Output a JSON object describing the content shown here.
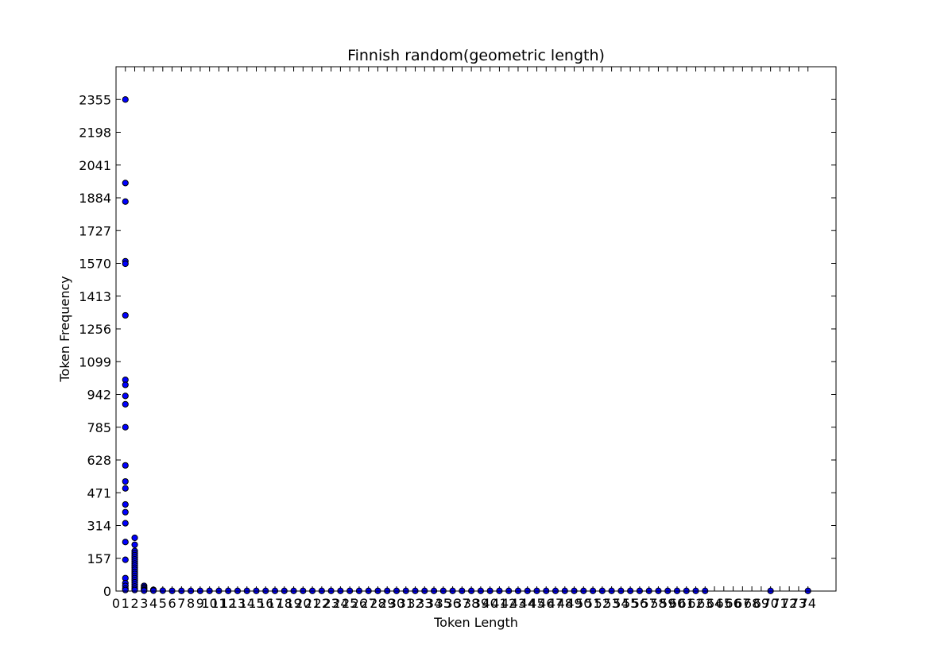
{
  "chart_data": {
    "type": "scatter",
    "title": "Finnish random(geometric length)",
    "xlabel": "Token Length",
    "ylabel": "Token Frequency",
    "xlim": [
      0,
      77
    ],
    "ylim": [
      0,
      2512
    ],
    "grid": false,
    "point_color": "#0000ff",
    "y_ticks": [
      0,
      157,
      314,
      471,
      628,
      785,
      942,
      1099,
      1256,
      1413,
      1570,
      1727,
      1884,
      2041,
      2198,
      2355
    ],
    "x_ticks": [
      0,
      1,
      2,
      3,
      4,
      5,
      6,
      7,
      8,
      9,
      10,
      11,
      12,
      13,
      14,
      15,
      16,
      17,
      18,
      19,
      20,
      21,
      22,
      23,
      24,
      25,
      26,
      27,
      28,
      29,
      30,
      31,
      32,
      33,
      34,
      35,
      36,
      37,
      38,
      39,
      40,
      41,
      42,
      43,
      44,
      45,
      46,
      47,
      48,
      49,
      50,
      51,
      52,
      53,
      54,
      55,
      56,
      57,
      58,
      59,
      60,
      61,
      62,
      63,
      64,
      65,
      66,
      67,
      68,
      69,
      70,
      71,
      72,
      73,
      74
    ],
    "points": [
      {
        "x": 1,
        "y": 2355
      },
      {
        "x": 1,
        "y": 1955
      },
      {
        "x": 1,
        "y": 1866
      },
      {
        "x": 1,
        "y": 1580
      },
      {
        "x": 1,
        "y": 1568
      },
      {
        "x": 1,
        "y": 1321
      },
      {
        "x": 1,
        "y": 1012
      },
      {
        "x": 1,
        "y": 988
      },
      {
        "x": 1,
        "y": 935
      },
      {
        "x": 1,
        "y": 895
      },
      {
        "x": 1,
        "y": 785
      },
      {
        "x": 1,
        "y": 602
      },
      {
        "x": 1,
        "y": 525
      },
      {
        "x": 1,
        "y": 492
      },
      {
        "x": 1,
        "y": 415
      },
      {
        "x": 1,
        "y": 378
      },
      {
        "x": 1,
        "y": 325
      },
      {
        "x": 1,
        "y": 235
      },
      {
        "x": 1,
        "y": 150
      },
      {
        "x": 1,
        "y": 62
      },
      {
        "x": 1,
        "y": 38
      },
      {
        "x": 1,
        "y": 25
      },
      {
        "x": 1,
        "y": 12
      },
      {
        "x": 1,
        "y": 5
      },
      {
        "x": 2,
        "y": 255
      },
      {
        "x": 2,
        "y": 222
      },
      {
        "x": 2,
        "y": 192
      },
      {
        "x": 2,
        "y": 182
      },
      {
        "x": 2,
        "y": 172
      },
      {
        "x": 2,
        "y": 162
      },
      {
        "x": 2,
        "y": 152
      },
      {
        "x": 2,
        "y": 142
      },
      {
        "x": 2,
        "y": 132
      },
      {
        "x": 2,
        "y": 122
      },
      {
        "x": 2,
        "y": 112
      },
      {
        "x": 2,
        "y": 102
      },
      {
        "x": 2,
        "y": 92
      },
      {
        "x": 2,
        "y": 82
      },
      {
        "x": 2,
        "y": 72
      },
      {
        "x": 2,
        "y": 62
      },
      {
        "x": 2,
        "y": 52
      },
      {
        "x": 2,
        "y": 42
      },
      {
        "x": 2,
        "y": 32
      },
      {
        "x": 2,
        "y": 22
      },
      {
        "x": 2,
        "y": 12
      },
      {
        "x": 2,
        "y": 5
      },
      {
        "x": 3,
        "y": 25
      },
      {
        "x": 3,
        "y": 18
      },
      {
        "x": 3,
        "y": 12
      },
      {
        "x": 3,
        "y": 6
      },
      {
        "x": 3,
        "y": 2
      },
      {
        "x": 4,
        "y": 6
      },
      {
        "x": 4,
        "y": 2
      },
      {
        "x": 5,
        "y": 2
      },
      {
        "x": 6,
        "y": 1
      },
      {
        "x": 7,
        "y": 1
      },
      {
        "x": 8,
        "y": 1
      },
      {
        "x": 9,
        "y": 1
      },
      {
        "x": 10,
        "y": 1
      },
      {
        "x": 11,
        "y": 1
      },
      {
        "x": 12,
        "y": 1
      },
      {
        "x": 13,
        "y": 1
      },
      {
        "x": 14,
        "y": 1
      },
      {
        "x": 15,
        "y": 1
      },
      {
        "x": 16,
        "y": 1
      },
      {
        "x": 17,
        "y": 1
      },
      {
        "x": 18,
        "y": 1
      },
      {
        "x": 19,
        "y": 1
      },
      {
        "x": 20,
        "y": 1
      },
      {
        "x": 21,
        "y": 1
      },
      {
        "x": 22,
        "y": 1
      },
      {
        "x": 23,
        "y": 1
      },
      {
        "x": 24,
        "y": 1
      },
      {
        "x": 25,
        "y": 1
      },
      {
        "x": 26,
        "y": 1
      },
      {
        "x": 27,
        "y": 1
      },
      {
        "x": 28,
        "y": 1
      },
      {
        "x": 29,
        "y": 1
      },
      {
        "x": 30,
        "y": 1
      },
      {
        "x": 31,
        "y": 1
      },
      {
        "x": 32,
        "y": 1
      },
      {
        "x": 33,
        "y": 1
      },
      {
        "x": 34,
        "y": 1
      },
      {
        "x": 35,
        "y": 1
      },
      {
        "x": 36,
        "y": 1
      },
      {
        "x": 37,
        "y": 1
      },
      {
        "x": 38,
        "y": 1
      },
      {
        "x": 39,
        "y": 1
      },
      {
        "x": 40,
        "y": 1
      },
      {
        "x": 41,
        "y": 1
      },
      {
        "x": 42,
        "y": 1
      },
      {
        "x": 43,
        "y": 1
      },
      {
        "x": 44,
        "y": 1
      },
      {
        "x": 45,
        "y": 1
      },
      {
        "x": 46,
        "y": 1
      },
      {
        "x": 47,
        "y": 1
      },
      {
        "x": 48,
        "y": 1
      },
      {
        "x": 49,
        "y": 1
      },
      {
        "x": 50,
        "y": 1
      },
      {
        "x": 51,
        "y": 1
      },
      {
        "x": 52,
        "y": 1
      },
      {
        "x": 53,
        "y": 1
      },
      {
        "x": 54,
        "y": 1
      },
      {
        "x": 55,
        "y": 1
      },
      {
        "x": 56,
        "y": 1
      },
      {
        "x": 57,
        "y": 1
      },
      {
        "x": 58,
        "y": 1
      },
      {
        "x": 59,
        "y": 1
      },
      {
        "x": 60,
        "y": 1
      },
      {
        "x": 61,
        "y": 1
      },
      {
        "x": 62,
        "y": 1
      },
      {
        "x": 63,
        "y": 1
      },
      {
        "x": 70,
        "y": 1
      },
      {
        "x": 74,
        "y": 1
      }
    ]
  }
}
